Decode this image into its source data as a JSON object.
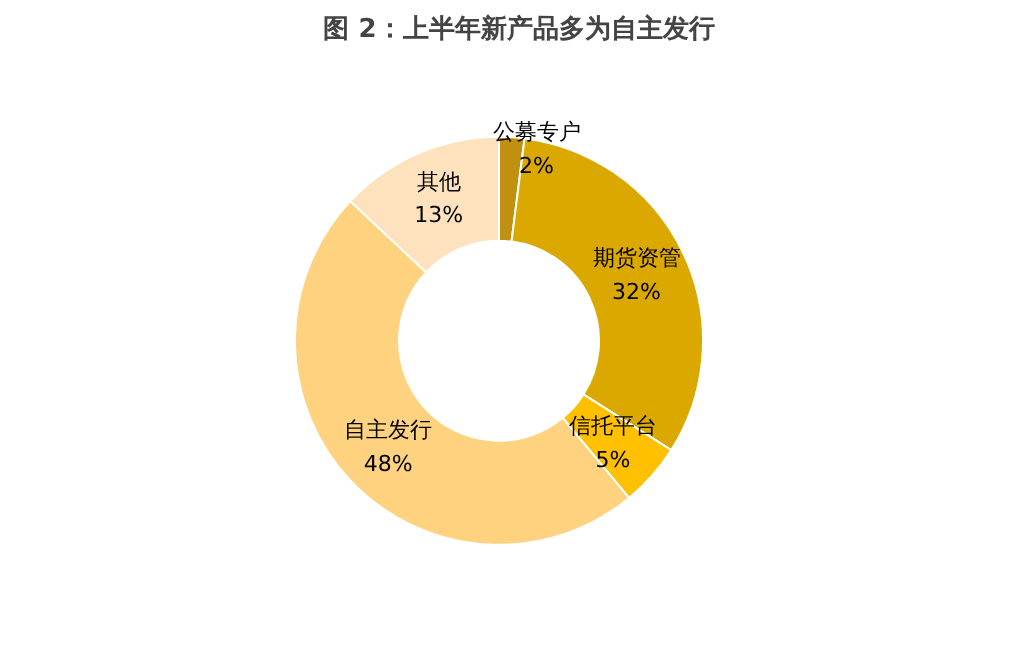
{
  "chart_data": {
    "type": "donut",
    "title": "图 2：上半年新产品多为自主发行",
    "categories": [
      "公募专户",
      "期货资管",
      "信托平台",
      "自主发行",
      "其他"
    ],
    "values": [
      2,
      32,
      5,
      48,
      13
    ],
    "value_labels": [
      "2%",
      "32%",
      "5%",
      "48%",
      "13%"
    ],
    "colors": [
      "#c09010",
      "#dba800",
      "#ffc000",
      "#ffd27f",
      "#fde2bd"
    ]
  }
}
